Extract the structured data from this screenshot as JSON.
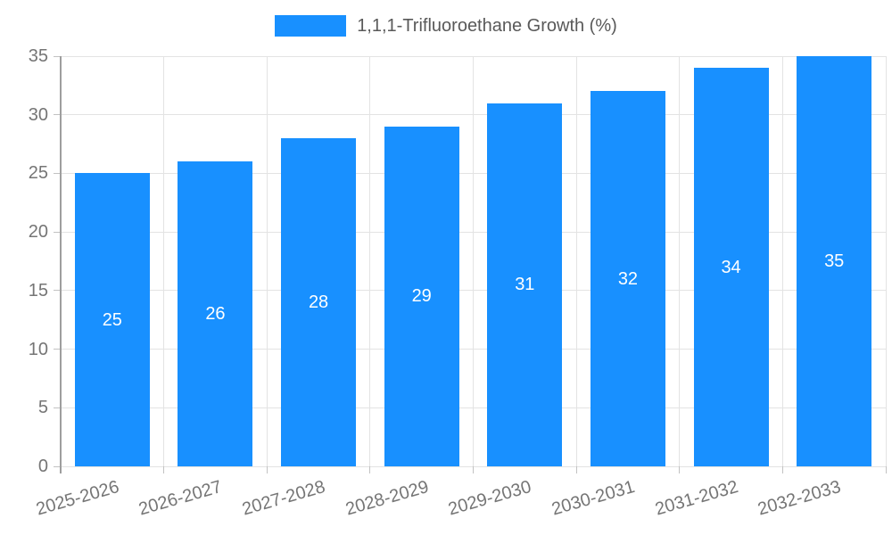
{
  "legend": {
    "label": "1,1,1-Trifluoroethane Growth (%)"
  },
  "chart_data": {
    "type": "bar",
    "title": "",
    "xlabel": "",
    "ylabel": "",
    "categories": [
      "2025-2026",
      "2026-2027",
      "2027-2028",
      "2028-2029",
      "2029-2030",
      "2030-2031",
      "2031-2032",
      "2032-2033"
    ],
    "series": [
      {
        "name": "1,1,1-Trifluoroethane Growth (%)",
        "values": [
          25,
          26,
          28,
          29,
          31,
          32,
          34,
          35
        ]
      }
    ],
    "value_labels": "inside-center",
    "ylim": [
      0,
      35
    ],
    "yticks": [
      0,
      5,
      10,
      15,
      20,
      25,
      30,
      35
    ],
    "grid": true,
    "legend_position": "top-center",
    "x_label_rotation_deg": -16,
    "colors": {
      "bar": "#1890ff",
      "bar_value_label": "#ffffff",
      "axis_labels": "#757575",
      "legend_text": "#595959",
      "gridline": "#e3e3e3",
      "axis_line": "#9e9e9e",
      "tick_mark": "#c2c2c2",
      "background": "#ffffff"
    }
  }
}
